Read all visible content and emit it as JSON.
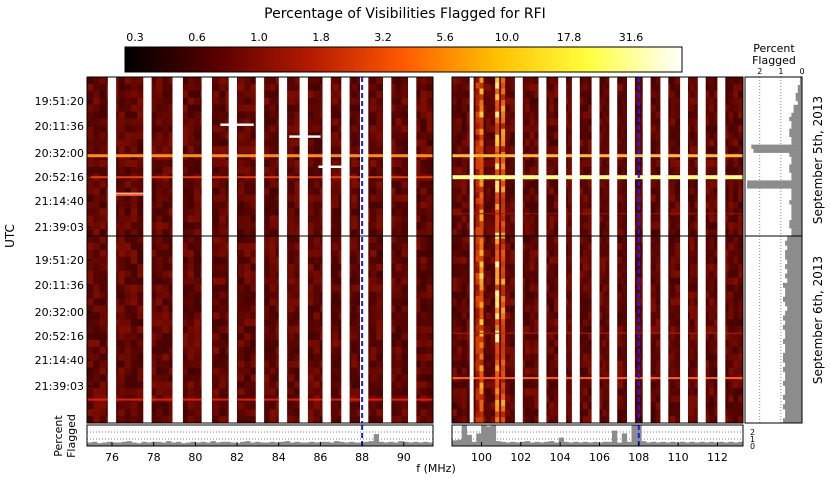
{
  "chart_data": {
    "type": "heatmap",
    "title": "Percentage of Visibilities Flagged for RFI",
    "colorbar": {
      "ticks": [
        "0.3",
        "0.6",
        "1.0",
        "1.8",
        "3.2",
        "5.6",
        "10.0",
        "17.8",
        "31.6"
      ],
      "colormap": [
        "#000000",
        "#5a0000",
        "#b41a00",
        "#ff5a00",
        "#ffc000",
        "#ffff40",
        "#ffffff"
      ]
    },
    "ylabel": "UTC",
    "xlabel": "f (MHz)",
    "time_ticks": [
      "19:51:20",
      "20:11:36",
      "20:32:00",
      "20:52:16",
      "21:14:40",
      "21:39:03"
    ],
    "days": [
      "September 5th, 2013",
      "September 6th, 2013"
    ],
    "side_panel": {
      "label_line1": "Percent",
      "label_line2": "Flagged",
      "ticks": [
        "2",
        "1",
        "0"
      ]
    },
    "bottom_panel": {
      "label_line1": "Percent",
      "label_line2": "Flagged",
      "ticks": [
        "0",
        "1",
        "2"
      ],
      "ylim": [
        0,
        3
      ]
    },
    "band1": {
      "xlim": [
        74.8,
        91.4
      ],
      "ticks": [
        76,
        78,
        80,
        82,
        84,
        86,
        88,
        90
      ],
      "tick_labels": [
        "76",
        "78",
        "80",
        "82",
        "84",
        "86",
        "88",
        "90"
      ],
      "gaps_mhz": [
        [
          75.8,
          76.2
        ],
        [
          77.5,
          77.9
        ],
        [
          78.9,
          79.4
        ],
        [
          80.3,
          80.8
        ],
        [
          81.6,
          82.0
        ],
        [
          82.9,
          83.3
        ],
        [
          84.0,
          84.4
        ],
        [
          85.0,
          85.4
        ],
        [
          86.1,
          86.5
        ],
        [
          87.0,
          87.4
        ],
        [
          87.9,
          88.3
        ],
        [
          89.0,
          89.4
        ],
        [
          90.2,
          90.6
        ]
      ],
      "marker_mhz": 88.0
    },
    "band2": {
      "xlim": [
        98.5,
        113.3
      ],
      "ticks": [
        100,
        102,
        104,
        106,
        108,
        110,
        112
      ],
      "tick_labels": [
        "100",
        "102",
        "104",
        "106",
        "108",
        "110",
        "112"
      ],
      "gaps_mhz": [
        [
          99.4,
          99.6
        ],
        [
          101.7,
          102.1
        ],
        [
          102.9,
          103.3
        ],
        [
          103.9,
          104.3
        ],
        [
          104.6,
          105.0
        ],
        [
          105.6,
          106.0
        ],
        [
          106.5,
          106.9
        ],
        [
          107.4,
          107.8
        ],
        [
          108.2,
          108.6
        ],
        [
          109.1,
          109.5
        ],
        [
          110.1,
          110.5
        ],
        [
          111.0,
          111.4
        ],
        [
          112.0,
          112.4
        ]
      ],
      "marker_mhz": 108.0
    },
    "rfi_lines": [
      {
        "band": 1,
        "day": 1,
        "time_frac": 0.495,
        "color": "#ff8c1a",
        "width": 3
      },
      {
        "band": 2,
        "day": 1,
        "time_frac": 0.495,
        "color": "#ffbb33",
        "width": 3
      },
      {
        "band": 1,
        "day": 1,
        "time_frac": 0.63,
        "color": "#e04010",
        "width": 2
      },
      {
        "band": 2,
        "day": 1,
        "time_frac": 0.63,
        "color": "#ffff88",
        "width": 4
      },
      {
        "band": 1,
        "day": 2,
        "time_frac": 0.875,
        "color": "#e02000",
        "width": 2
      },
      {
        "band": 2,
        "day": 2,
        "time_frac": 0.76,
        "color": "#ff6020",
        "width": 2
      },
      {
        "band": 2,
        "day": 2,
        "time_frac": 0.52,
        "color": "#b02000",
        "width": 1
      },
      {
        "band": 2,
        "day": 1,
        "time_frac": 0.86,
        "color": "#9a1400",
        "width": 1
      }
    ],
    "rfi_segments": [
      {
        "band": 1,
        "day": 1,
        "x0_mhz": 76.0,
        "x1_mhz": 77.9,
        "time_frac": 0.735,
        "color": "#ffffff"
      },
      {
        "band": 1,
        "day": 1,
        "x0_mhz": 81.2,
        "x1_mhz": 82.8,
        "time_frac": 0.3,
        "color": "#ffffff"
      },
      {
        "band": 1,
        "day": 1,
        "x0_mhz": 84.5,
        "x1_mhz": 86.0,
        "time_frac": 0.375,
        "color": "#ffffff"
      },
      {
        "band": 1,
        "day": 1,
        "x0_mhz": 85.9,
        "x1_mhz": 87.3,
        "time_frac": 0.565,
        "color": "#ffffff"
      },
      {
        "band": 1,
        "day": 1,
        "x0_mhz": 76.0,
        "x1_mhz": 77.5,
        "time_frac": 0.74,
        "color": "#ff6020"
      }
    ],
    "rfi_columns": [
      {
        "x_mhz": 99.8,
        "intensity": 0.75
      },
      {
        "x_mhz": 100.0,
        "intensity": 0.9
      },
      {
        "x_mhz": 100.8,
        "intensity": 0.95
      },
      {
        "x_mhz": 101.1,
        "intensity": 0.85
      },
      {
        "x_mhz": 104.5,
        "intensity": 0.45
      },
      {
        "x_mhz": 106.4,
        "intensity": 0.4
      },
      {
        "x_mhz": 107.3,
        "intensity": 0.35
      }
    ],
    "side_panel_percent": {
      "day1": [
        0.1,
        0.1,
        0.2,
        0.2,
        0.3,
        0.3,
        0.2,
        0.4,
        0.4,
        0.5,
        0.6,
        0.5,
        0.5,
        0.6,
        0.6,
        0.5,
        0.5,
        2.4,
        2.3,
        0.6,
        0.5,
        0.5,
        0.6,
        0.6,
        0.5,
        0.5,
        2.6,
        2.6,
        0.5,
        0.5,
        0.5,
        0.6,
        0.5,
        0.5,
        0.5,
        0.5,
        0.6,
        0.6,
        0.5,
        0.5
      ],
      "day2": [
        0.7,
        0.8,
        0.7,
        0.8,
        0.8,
        0.7,
        0.8,
        0.7,
        0.8,
        0.7,
        0.9,
        0.8,
        0.8,
        0.9,
        0.8,
        0.7,
        0.8,
        0.9,
        0.8,
        0.9,
        0.8,
        0.8,
        0.9,
        0.8,
        0.8,
        0.9,
        0.9,
        0.8,
        0.9,
        0.8,
        0.8,
        0.9,
        0.8,
        0.8,
        0.9,
        0.8,
        0.9,
        0.8,
        0.8,
        0.9
      ]
    },
    "bottom_percent": {
      "band1": [
        0.5,
        0.6,
        0.4,
        0.5,
        0.6,
        0.5,
        0.5,
        0.6,
        0.7,
        0.5,
        0.4,
        0.6,
        0.5,
        0.6,
        0.6,
        0.5,
        0.7,
        0.5,
        0.6,
        0.4,
        0.5,
        0.6,
        0.5,
        0.6,
        0.5,
        0.7,
        0.5,
        0.6,
        0.6,
        0.5,
        0.4,
        0.6,
        0.7,
        0.5,
        0.6,
        0.5,
        0.5,
        0.6,
        0.5,
        0.6,
        0.7,
        0.5,
        0.6,
        0.5,
        0.5,
        0.6,
        0.5,
        0.6,
        0.6,
        0.5,
        0.7,
        0.6,
        0.5,
        0.6,
        0.5,
        0.5,
        0.6,
        0.7,
        1.7,
        0.6,
        0.5,
        0.6,
        0.5,
        0.7,
        0.6,
        0.5,
        0.6,
        0.5,
        0.6,
        0.5
      ],
      "band2": [
        0.8,
        0.9,
        3.0,
        1.6,
        0.6,
        1.8,
        3.0,
        2.8,
        3.0,
        0.7,
        0.6,
        0.5,
        0.6,
        0.5,
        0.6,
        0.7,
        0.5,
        0.6,
        0.5,
        0.6,
        0.7,
        0.5,
        1.2,
        0.6,
        0.5,
        0.6,
        0.5,
        0.6,
        0.5,
        0.6,
        0.5,
        0.6,
        0.6,
        2.2,
        0.5,
        1.8,
        0.6,
        3.0,
        3.0,
        0.7,
        0.5,
        0.6,
        0.5,
        0.6,
        0.5,
        0.6,
        0.5,
        0.6,
        0.5,
        0.6,
        0.5,
        0.6,
        0.5,
        0.6,
        0.5,
        0.6,
        0.5,
        0.6,
        0.5,
        0.6
      ]
    }
  }
}
